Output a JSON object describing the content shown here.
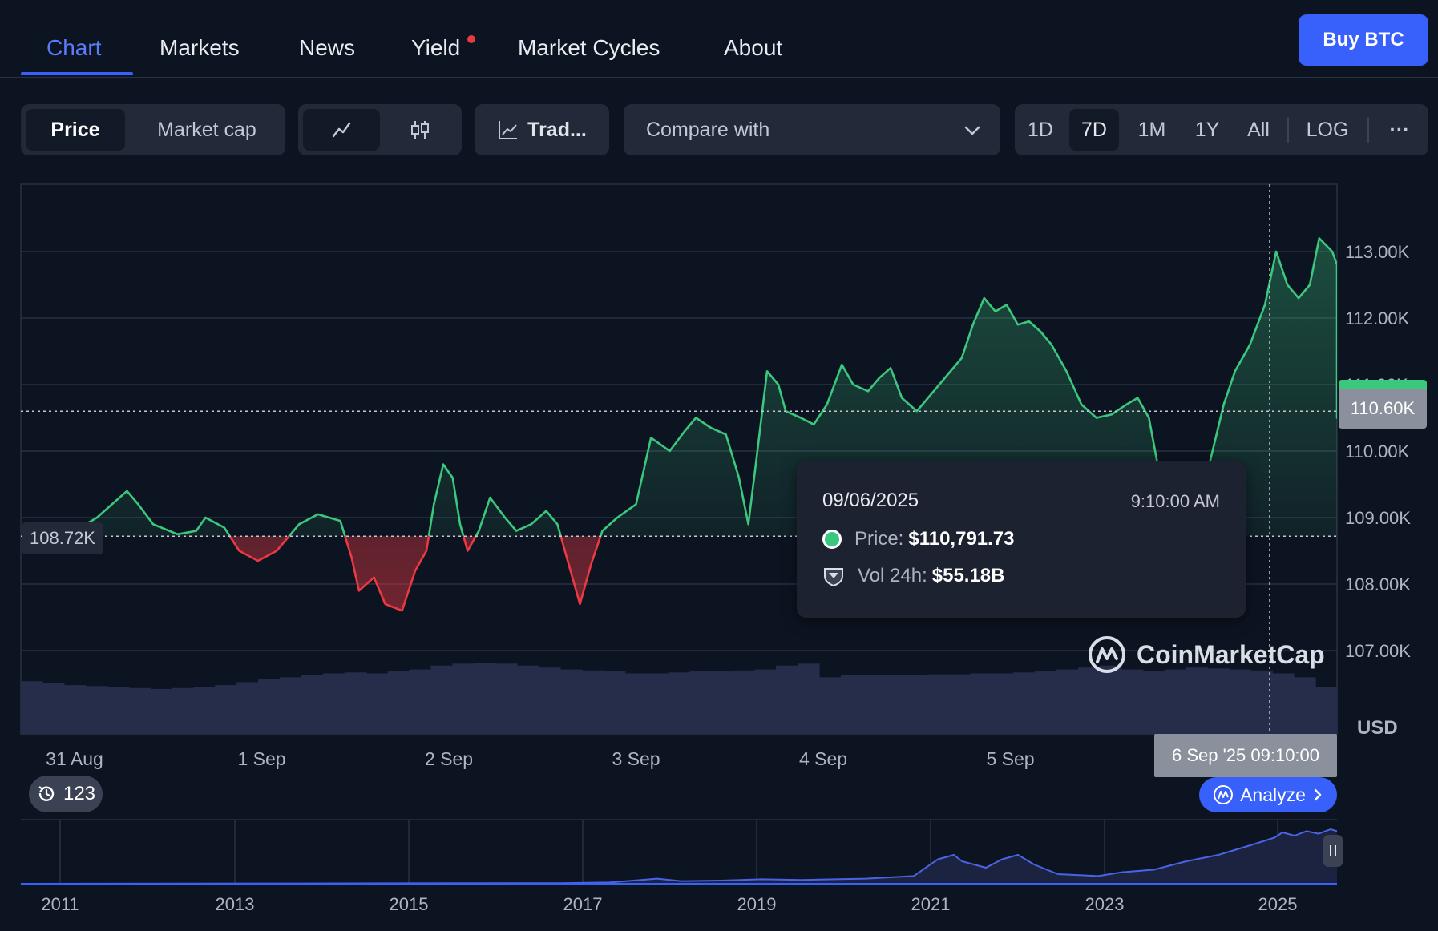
{
  "nav": {
    "tabs": [
      "Chart",
      "Markets",
      "News",
      "Yield",
      "Market Cycles",
      "About"
    ],
    "active_tab": "Chart",
    "buy_label": "Buy BTC"
  },
  "toolbar": {
    "price_label": "Price",
    "market_cap_label": "Market cap",
    "trading_label": "Trad...",
    "compare_label": "Compare with",
    "ranges": [
      "1D",
      "7D",
      "1M",
      "1Y",
      "All"
    ],
    "active_range": "7D",
    "log_label": "LOG",
    "more_label": "···"
  },
  "colors": {
    "up": "#3bc77d",
    "down": "#ea3943",
    "accent": "#3861fb",
    "background": "#0d1421"
  },
  "tooltip": {
    "date": "09/06/2025",
    "time": "9:10:00 AM",
    "price_label": "Price:",
    "price_value": "$110,791.73",
    "vol_label": "Vol 24h:",
    "vol_value": "$55.18B"
  },
  "watermark": "CoinMarketCap",
  "history_count": "123",
  "analyze_label": "Analyze",
  "crosshair_x_label": "6 Sep '25 09:10:00",
  "current_price_label": "110.60K",
  "open_price_label": "108.72K",
  "chart_data": {
    "type": "area",
    "currency_label": "USD",
    "y_ticks": [
      "113.00K",
      "112.00K",
      "111.00K",
      "110.00K",
      "109.00K",
      "108.00K",
      "107.00K"
    ],
    "ylim": [
      106.2,
      113.8
    ],
    "x_ticks": [
      "31 Aug",
      "1 Sep",
      "2 Sep",
      "3 Sep",
      "4 Sep",
      "5 Sep"
    ],
    "xlim": [
      "2025-08-30T10:00",
      "2025-09-06T12:00"
    ],
    "baseline": 108.72,
    "crosshair_price": 110.6,
    "series": [
      {
        "values": [
          [
            -0.2,
            108.7
          ],
          [
            0.0,
            108.8
          ],
          [
            0.12,
            109.0
          ],
          [
            0.28,
            109.4
          ],
          [
            0.34,
            109.2
          ],
          [
            0.42,
            108.9
          ],
          [
            0.55,
            108.75
          ],
          [
            0.65,
            108.8
          ],
          [
            0.7,
            109.0
          ],
          [
            0.8,
            108.85
          ],
          [
            0.88,
            108.5
          ],
          [
            0.98,
            108.35
          ],
          [
            1.08,
            108.5
          ],
          [
            1.2,
            108.9
          ],
          [
            1.3,
            109.05
          ],
          [
            1.42,
            108.95
          ],
          [
            1.48,
            108.4
          ],
          [
            1.52,
            107.9
          ],
          [
            1.6,
            108.1
          ],
          [
            1.66,
            107.7
          ],
          [
            1.75,
            107.6
          ],
          [
            1.82,
            108.2
          ],
          [
            1.88,
            108.5
          ],
          [
            1.92,
            109.2
          ],
          [
            1.97,
            109.8
          ],
          [
            2.02,
            109.6
          ],
          [
            2.06,
            108.9
          ],
          [
            2.1,
            108.5
          ],
          [
            2.16,
            108.8
          ],
          [
            2.22,
            109.3
          ],
          [
            2.3,
            109.0
          ],
          [
            2.36,
            108.8
          ],
          [
            2.44,
            108.9
          ],
          [
            2.52,
            109.1
          ],
          [
            2.58,
            108.9
          ],
          [
            2.64,
            108.3
          ],
          [
            2.7,
            107.7
          ],
          [
            2.76,
            108.3
          ],
          [
            2.82,
            108.8
          ],
          [
            2.9,
            109.0
          ],
          [
            3.0,
            109.2
          ],
          [
            3.08,
            110.2
          ],
          [
            3.18,
            110.0
          ],
          [
            3.26,
            110.3
          ],
          [
            3.32,
            110.5
          ],
          [
            3.4,
            110.35
          ],
          [
            3.48,
            110.25
          ],
          [
            3.55,
            109.6
          ],
          [
            3.6,
            108.9
          ],
          [
            3.64,
            109.8
          ],
          [
            3.7,
            111.2
          ],
          [
            3.76,
            111.0
          ],
          [
            3.8,
            110.6
          ],
          [
            3.88,
            110.5
          ],
          [
            3.95,
            110.4
          ],
          [
            4.02,
            110.7
          ],
          [
            4.1,
            111.3
          ],
          [
            4.16,
            111.0
          ],
          [
            4.24,
            110.9
          ],
          [
            4.3,
            111.1
          ],
          [
            4.36,
            111.25
          ],
          [
            4.42,
            110.8
          ],
          [
            4.5,
            110.6
          ],
          [
            4.56,
            110.8
          ],
          [
            4.62,
            111.0
          ],
          [
            4.68,
            111.2
          ],
          [
            4.74,
            111.4
          ],
          [
            4.8,
            111.9
          ],
          [
            4.86,
            112.3
          ],
          [
            4.92,
            112.1
          ],
          [
            4.98,
            112.2
          ],
          [
            5.04,
            111.9
          ],
          [
            5.1,
            111.95
          ],
          [
            5.16,
            111.8
          ],
          [
            5.22,
            111.6
          ],
          [
            5.3,
            111.2
          ],
          [
            5.38,
            110.7
          ],
          [
            5.46,
            110.5
          ],
          [
            5.54,
            110.55
          ],
          [
            5.62,
            110.7
          ],
          [
            5.68,
            110.8
          ],
          [
            5.74,
            110.5
          ],
          [
            5.8,
            109.6
          ],
          [
            5.86,
            109.05
          ],
          [
            5.9,
            109.5
          ],
          [
            5.96,
            109.0
          ],
          [
            6.02,
            109.3
          ],
          [
            6.08,
            110.0
          ],
          [
            6.14,
            110.7
          ],
          [
            6.2,
            111.2
          ],
          [
            6.28,
            111.6
          ],
          [
            6.36,
            112.2
          ],
          [
            6.42,
            113.0
          ],
          [
            6.48,
            112.5
          ],
          [
            6.54,
            112.3
          ],
          [
            6.6,
            112.5
          ],
          [
            6.65,
            113.2
          ],
          [
            6.72,
            113.0
          ],
          [
            6.78,
            112.8
          ],
          [
            6.82,
            110.8
          ],
          [
            6.88,
            110.7
          ],
          [
            6.94,
            110.5
          ],
          [
            7.0,
            110.8
          ],
          [
            7.06,
            111.1
          ],
          [
            7.12,
            111.3
          ],
          [
            7.18,
            110.8
          ],
          [
            7.24,
            110.7
          ],
          [
            7.3,
            110.5
          ],
          [
            7.36,
            110.8
          ],
          [
            7.42,
            110.9
          ],
          [
            7.48,
            110.7
          ],
          [
            7.56,
            110.75
          ],
          [
            7.64,
            110.8
          ],
          [
            7.72,
            110.7
          ],
          [
            7.8,
            110.75
          ],
          [
            7.88,
            110.8
          ],
          [
            7.96,
            110.6
          ]
        ]
      }
    ],
    "volume_relative": [
      0.54,
      0.52,
      0.5,
      0.49,
      0.48,
      0.47,
      0.46,
      0.47,
      0.48,
      0.5,
      0.53,
      0.56,
      0.58,
      0.6,
      0.62,
      0.63,
      0.62,
      0.64,
      0.66,
      0.7,
      0.72,
      0.73,
      0.72,
      0.7,
      0.68,
      0.66,
      0.65,
      0.64,
      0.62,
      0.62,
      0.63,
      0.64,
      0.64,
      0.65,
      0.66,
      0.7,
      0.72,
      0.58,
      0.6,
      0.6,
      0.6,
      0.6,
      0.61,
      0.61,
      0.62,
      0.62,
      0.63,
      0.64,
      0.66,
      0.68,
      0.7,
      0.66,
      0.64,
      0.66,
      0.68,
      0.67,
      0.66,
      0.65,
      0.62,
      0.58,
      0.48
    ]
  },
  "navigator": {
    "years": [
      "2011",
      "2013",
      "2015",
      "2017",
      "2019",
      "2021",
      "2023",
      "2025"
    ]
  }
}
